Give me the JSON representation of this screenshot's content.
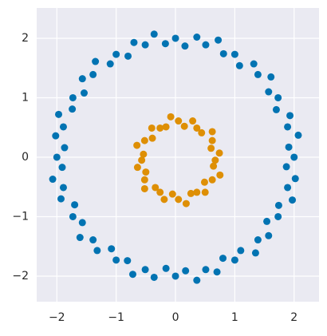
{
  "chart_data": {
    "type": "scatter",
    "xlim": [
      -2.34,
      2.42
    ],
    "ylim": [
      -2.43,
      2.51
    ],
    "xticks": [
      {
        "value": -2,
        "label": "−2"
      },
      {
        "value": -1,
        "label": "−1"
      },
      0,
      1,
      2
    ],
    "yticks": [
      {
        "value": -2,
        "label": "−2"
      },
      {
        "value": -1,
        "label": "−1"
      },
      0,
      1,
      2
    ],
    "grid": true,
    "series": [
      {
        "color": "#0173b2",
        "x": [
          2.0,
          1.91,
          2.07,
          1.89,
          1.93,
          1.7,
          1.73,
          1.57,
          1.61,
          1.39,
          1.32,
          1.08,
          1.0,
          0.81,
          0.72,
          0.51,
          0.36,
          0.16,
          0.0,
          -0.17,
          -0.36,
          -0.51,
          -0.7,
          -0.8,
          -1.0,
          -1.1,
          -1.35,
          -1.39,
          -1.57,
          -1.54,
          -1.73,
          -1.74,
          -1.97,
          -1.89,
          -2.02,
          -1.87,
          -2.0,
          -1.91,
          -2.07,
          -1.89,
          -1.93,
          -1.7,
          -1.73,
          -1.57,
          -1.61,
          -1.39,
          -1.32,
          -1.08,
          -1.0,
          -0.81,
          -0.72,
          -0.51,
          -0.36,
          -0.16,
          0.0,
          0.17,
          0.36,
          0.51,
          0.7,
          0.8,
          1.0,
          1.1,
          1.35,
          1.39,
          1.57,
          1.54,
          1.73,
          1.74,
          1.97,
          1.89,
          2.02,
          1.87
        ],
        "y": [
          0.0,
          0.17,
          0.37,
          0.51,
          0.7,
          0.8,
          1.0,
          1.1,
          1.35,
          1.39,
          1.57,
          1.54,
          1.73,
          1.74,
          1.97,
          1.89,
          2.02,
          1.87,
          2.0,
          1.91,
          2.07,
          1.89,
          1.93,
          1.7,
          1.73,
          1.57,
          1.61,
          1.39,
          1.32,
          1.08,
          1.0,
          0.81,
          0.72,
          0.51,
          0.36,
          0.16,
          0.0,
          -0.17,
          -0.37,
          -0.51,
          -0.7,
          -0.8,
          -1.0,
          -1.1,
          -1.35,
          -1.39,
          -1.57,
          -1.54,
          -1.73,
          -1.74,
          -1.97,
          -1.89,
          -2.02,
          -1.87,
          -2.0,
          -1.91,
          -2.07,
          -1.89,
          -1.93,
          -1.7,
          -1.73,
          -1.57,
          -1.61,
          -1.39,
          -1.32,
          -1.08,
          -1.0,
          -0.81,
          -0.72,
          -0.51,
          -0.36,
          -0.16
        ]
      },
      {
        "color": "#de8f05",
        "x": [
          0.67,
          0.74,
          0.6,
          0.62,
          0.62,
          0.44,
          0.36,
          0.29,
          0.15,
          0.05,
          -0.08,
          -0.16,
          -0.26,
          -0.4,
          -0.39,
          -0.52,
          -0.65,
          -0.54,
          -0.57,
          -0.64,
          -0.5,
          -0.52,
          -0.52,
          -0.34,
          -0.26,
          -0.19,
          -0.05,
          0.05,
          0.18,
          0.26,
          0.36,
          0.5,
          0.49,
          0.62,
          0.75,
          0.64
        ],
        "y": [
          -0.05,
          0.07,
          0.15,
          0.28,
          0.43,
          0.41,
          0.49,
          0.61,
          0.52,
          0.61,
          0.68,
          0.51,
          0.49,
          0.49,
          0.32,
          0.28,
          0.2,
          0.05,
          -0.05,
          -0.17,
          -0.25,
          -0.38,
          -0.53,
          -0.51,
          -0.59,
          -0.71,
          -0.62,
          -0.71,
          -0.78,
          -0.61,
          -0.59,
          -0.59,
          -0.42,
          -0.38,
          -0.3,
          -0.15
        ]
      }
    ]
  }
}
